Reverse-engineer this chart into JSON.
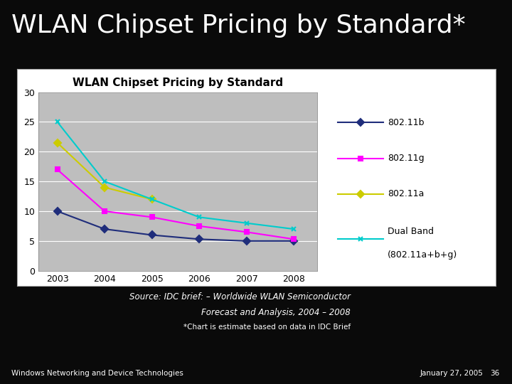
{
  "title_slide": "WLAN Chipset Pricing by Standard*",
  "chart_title": "WLAN Chipset Pricing by Standard",
  "years": [
    2003,
    2004,
    2005,
    2006,
    2007,
    2008
  ],
  "series": {
    "802.11b": {
      "values": [
        10,
        7,
        6,
        5.3,
        5,
        5
      ],
      "color": "#1F2D7B",
      "marker": "D",
      "linewidth": 1.5
    },
    "802.11g": {
      "values": [
        17,
        10,
        9,
        7.5,
        6.5,
        5.3
      ],
      "color": "#FF00FF",
      "marker": "s",
      "linewidth": 1.5
    },
    "802.11a": {
      "values": [
        21.5,
        14,
        12,
        null,
        null,
        null
      ],
      "color": "#CCCC00",
      "marker": "D",
      "linewidth": 1.5
    },
    "Dual Band\n(802.11a+b+g)": {
      "values": [
        25,
        15,
        12,
        9,
        8,
        7
      ],
      "color": "#00CCCC",
      "marker": "x",
      "linewidth": 1.5
    }
  },
  "ylim": [
    0,
    30
  ],
  "yticks": [
    0,
    5,
    10,
    15,
    20,
    25,
    30
  ],
  "slide_bg": "#0A0A0A",
  "outer_box_bg": "#FFFFFF",
  "plot_area_bg": "#BEBEBE",
  "legend_bg": "#FFFFFF",
  "source_text_line1": "Source: IDC brief: ",
  "source_text_italic": "Worldwide WLAN Semiconductor",
  "source_text_line2_italic": "Forecast and Analysis, 2004 – 2008",
  "footnote": "*Chart is estimate based on data in IDC Brief",
  "footer_left": "Windows Networking and Device Technologies",
  "footer_right": "January 27, 2005",
  "footer_num": "36",
  "title_fontsize": 26,
  "chart_title_fontsize": 11,
  "axis_fontsize": 9,
  "legend_fontsize": 9,
  "source_fontsize": 8.5,
  "footnote_fontsize": 7.5,
  "footer_fontsize": 7.5,
  "legend_labels": [
    "802.11b",
    "802.11g",
    "802.11a",
    "Dual Band\n(802.11a+b+g)"
  ]
}
